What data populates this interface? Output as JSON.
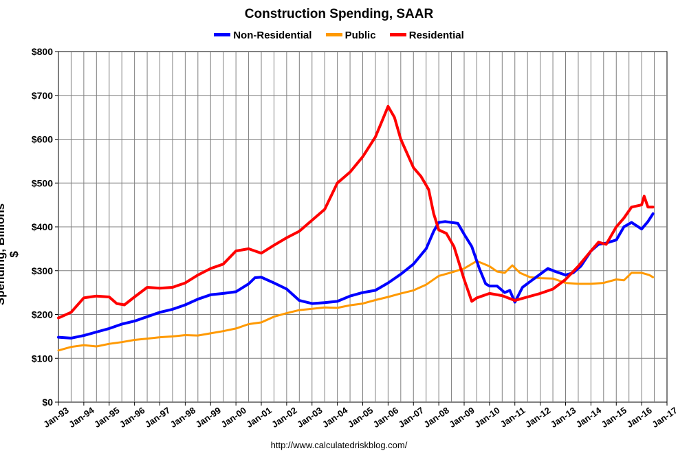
{
  "chart_data": {
    "type": "line",
    "title": "Construction Spending, SAAR",
    "ylabel": "Spending, Billions $",
    "xlabel": "",
    "ylim": [
      0,
      800
    ],
    "y_ticks": [
      "$0",
      "$100",
      "$200",
      "$300",
      "$400",
      "$500",
      "$600",
      "$700",
      "$800"
    ],
    "y_tick_values": [
      0,
      100,
      200,
      300,
      400,
      500,
      600,
      700,
      800
    ],
    "x_range": [
      1993.0,
      2017.0
    ],
    "x_ticks": [
      "Jan-93",
      "Jan-94",
      "Jan-95",
      "Jan-96",
      "Jan-97",
      "Jan-98",
      "Jan-99",
      "Jan-00",
      "Jan-01",
      "Jan-02",
      "Jan-03",
      "Jan-04",
      "Jan-05",
      "Jan-06",
      "Jan-07",
      "Jan-08",
      "Jan-09",
      "Jan-10",
      "Jan-11",
      "Jan-12",
      "Jan-13",
      "Jan-14",
      "Jan-15",
      "Jan-16",
      "Jan-17"
    ],
    "grid": true,
    "legend_position": "top-center",
    "source_note": "http://www.calculatedriskblog.com/",
    "series": [
      {
        "name": "Non-Residential",
        "color": "#0000ff",
        "x": [
          1993.0,
          1993.5,
          1994.0,
          1994.5,
          1995.0,
          1995.5,
          1996.0,
          1996.5,
          1997.0,
          1997.5,
          1998.0,
          1998.5,
          1999.0,
          1999.5,
          2000.0,
          2000.5,
          2000.75,
          2001.0,
          2001.5,
          2002.0,
          2002.5,
          2003.0,
          2003.5,
          2004.0,
          2004.5,
          2005.0,
          2005.5,
          2006.0,
          2006.5,
          2007.0,
          2007.5,
          2007.8,
          2008.0,
          2008.25,
          2008.5,
          2008.75,
          2009.0,
          2009.3,
          2009.6,
          2009.85,
          2010.0,
          2010.3,
          2010.6,
          2010.8,
          2011.0,
          2011.3,
          2011.6,
          2012.0,
          2012.3,
          2012.6,
          2013.0,
          2013.3,
          2013.6,
          2014.0,
          2014.3,
          2014.6,
          2015.0,
          2015.3,
          2015.6,
          2016.0,
          2016.25,
          2016.45
        ],
        "values": [
          148,
          146,
          152,
          160,
          168,
          178,
          185,
          195,
          205,
          212,
          222,
          235,
          245,
          248,
          252,
          270,
          284,
          285,
          272,
          258,
          232,
          225,
          227,
          230,
          242,
          250,
          255,
          272,
          292,
          315,
          350,
          390,
          410,
          412,
          410,
          408,
          383,
          355,
          305,
          270,
          265,
          265,
          250,
          255,
          228,
          262,
          275,
          292,
          305,
          298,
          290,
          295,
          310,
          345,
          360,
          363,
          370,
          400,
          410,
          395,
          412,
          430
        ]
      },
      {
        "name": "Public",
        "color": "#ff9900",
        "x": [
          1993.0,
          1993.5,
          1994.0,
          1994.5,
          1995.0,
          1995.5,
          1996.0,
          1996.5,
          1997.0,
          1997.5,
          1998.0,
          1998.5,
          1999.0,
          1999.5,
          2000.0,
          2000.5,
          2001.0,
          2001.5,
          2002.0,
          2002.5,
          2003.0,
          2003.5,
          2004.0,
          2004.5,
          2005.0,
          2005.5,
          2006.0,
          2006.5,
          2007.0,
          2007.5,
          2008.0,
          2008.5,
          2009.0,
          2009.5,
          2010.0,
          2010.3,
          2010.6,
          2010.9,
          2011.2,
          2011.6,
          2012.0,
          2012.5,
          2013.0,
          2013.5,
          2014.0,
          2014.5,
          2015.0,
          2015.3,
          2015.6,
          2016.0,
          2016.3,
          2016.45
        ],
        "values": [
          118,
          126,
          130,
          127,
          133,
          137,
          142,
          145,
          148,
          150,
          153,
          152,
          157,
          162,
          168,
          178,
          182,
          195,
          203,
          210,
          213,
          216,
          215,
          221,
          225,
          233,
          240,
          248,
          255,
          268,
          288,
          296,
          305,
          322,
          310,
          298,
          295,
          312,
          295,
          285,
          283,
          282,
          272,
          270,
          270,
          272,
          280,
          278,
          295,
          295,
          290,
          285
        ]
      },
      {
        "name": "Residential",
        "color": "#ff0000",
        "x": [
          1993.0,
          1993.5,
          1994.0,
          1994.5,
          1995.0,
          1995.3,
          1995.6,
          1996.0,
          1996.5,
          1997.0,
          1997.5,
          1998.0,
          1998.5,
          1999.0,
          1999.5,
          2000.0,
          2000.5,
          2000.75,
          2001.0,
          2001.5,
          2002.0,
          2002.5,
          2003.0,
          2003.5,
          2004.0,
          2004.5,
          2005.0,
          2005.5,
          2005.75,
          2006.0,
          2006.25,
          2006.5,
          2007.0,
          2007.3,
          2007.6,
          2007.8,
          2008.0,
          2008.3,
          2008.6,
          2009.0,
          2009.3,
          2009.5,
          2010.0,
          2010.5,
          2011.0,
          2011.5,
          2012.0,
          2012.5,
          2013.0,
          2013.5,
          2014.0,
          2014.3,
          2014.6,
          2015.0,
          2015.3,
          2015.6,
          2016.0,
          2016.1,
          2016.25,
          2016.45
        ],
        "values": [
          192,
          205,
          238,
          242,
          240,
          225,
          222,
          240,
          262,
          260,
          262,
          272,
          290,
          305,
          315,
          345,
          350,
          345,
          340,
          358,
          375,
          390,
          415,
          440,
          500,
          525,
          560,
          605,
          640,
          675,
          650,
          600,
          535,
          515,
          485,
          430,
          393,
          385,
          355,
          280,
          230,
          238,
          248,
          243,
          232,
          240,
          248,
          258,
          280,
          310,
          345,
          365,
          360,
          400,
          420,
          445,
          450,
          470,
          445,
          445
        ]
      }
    ]
  }
}
